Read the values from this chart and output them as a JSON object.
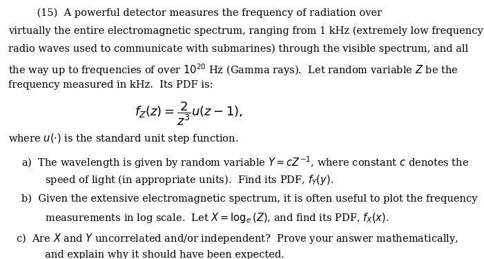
{
  "figsize": [
    7.01,
    3.75
  ],
  "dpi": 100,
  "bg_color": "#ffffff",
  "font_family": "serif",
  "title_text": "(15)  A powerful detector measures the frequency of radiation over\nvirtually the entire electromagnetic spectrum, ranging from 1 kHz (extremely low frequency\nradio waves used to communicate with submarines) through the visible spectrum, and all\nthe way up to frequencies of over $10^{20}$ Hz (Gamma rays).  Let random variable $Z$ be the\nfrequency measured in kHz.  Its PDF is:",
  "formula": "$f_Z(z) = \\dfrac{2}{z^3}u(z-1),$",
  "unit_step_text": "where $u(\\cdot)$ is the standard unit step function.",
  "item_a": "a)  The wavelength is given by random variable $Y = cZ^{-1}$, where constant $c$ denotes the\n      speed of light (in appropriate units).  Find its PDF, $f_Y(y)$.",
  "item_b": "b)  Given the extensive electromagnetic spectrum, it is often useful to plot the frequency\n      measurements in log scale.  Let $X = \\log_e(Z)$, and find its PDF, $f_X(x)$.",
  "item_c": "c)  Are $X$ and $Y$ uncorrelated and/or independent?  Prove your answer mathematically,\n      and explain why it should have been expected.",
  "text_color": "#000000",
  "fontsize_body": 10.5,
  "fontsize_formula": 13
}
